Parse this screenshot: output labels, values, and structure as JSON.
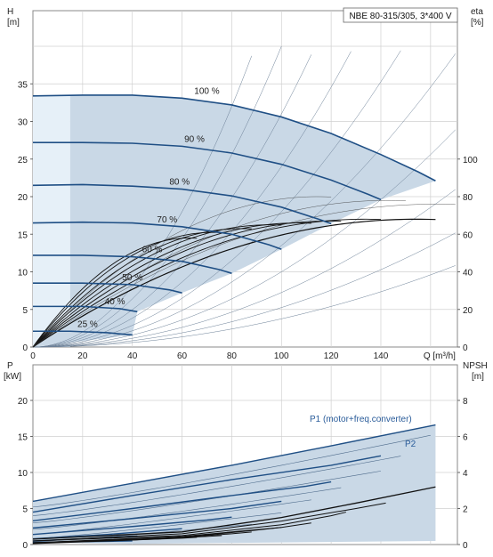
{
  "chart_data": [
    {
      "type": "line",
      "title": "NBE 80-315/305, 3*400 V",
      "xlabel": "Q [m³/h]",
      "ylabel_top": "H",
      "ylabel_unit": "[m]",
      "y2label_top": "eta",
      "y2label_unit": "[%]",
      "xlim": [
        0,
        160
      ],
      "ylim": [
        0,
        40
      ],
      "y2lim": [
        0,
        160
      ],
      "x_ticks": [
        0,
        20,
        40,
        60,
        80,
        100,
        120,
        140
      ],
      "y_ticks": [
        0,
        5,
        10,
        15,
        20,
        25,
        30,
        35
      ],
      "y2_ticks": [
        0,
        20,
        40,
        60,
        80,
        100
      ],
      "grid": true,
      "colors": {
        "area": "#c9d8e6",
        "area_light": "#e6f0f8",
        "curve": "#1f4f85",
        "eff": "#111111",
        "grid": "#d0d0d0"
      },
      "speed_curves": [
        {
          "label": "100 %",
          "label_x": 70,
          "points": [
            [
              0,
              33.4
            ],
            [
              20,
              33.5
            ],
            [
              40,
              33.5
            ],
            [
              60,
              33.1
            ],
            [
              80,
              32.2
            ],
            [
              100,
              30.6
            ],
            [
              120,
              28.4
            ],
            [
              140,
              25.6
            ],
            [
              155,
              23.3
            ],
            [
              162,
              22.1
            ]
          ]
        },
        {
          "label": "90 %",
          "label_x": 65,
          "points": [
            [
              0,
              27.2
            ],
            [
              20,
              27.2
            ],
            [
              40,
              27.1
            ],
            [
              60,
              26.7
            ],
            [
              80,
              25.8
            ],
            [
              100,
              24.3
            ],
            [
              120,
              22.2
            ],
            [
              135,
              20.3
            ],
            [
              140,
              19.6
            ]
          ]
        },
        {
          "label": "80 %",
          "label_x": 59,
          "points": [
            [
              0,
              21.5
            ],
            [
              20,
              21.6
            ],
            [
              40,
              21.4
            ],
            [
              60,
              21.0
            ],
            [
              80,
              20.1
            ],
            [
              100,
              18.6
            ],
            [
              115,
              17.0
            ],
            [
              120,
              16.4
            ]
          ]
        },
        {
          "label": "70 %",
          "label_x": 54,
          "points": [
            [
              0,
              16.5
            ],
            [
              20,
              16.6
            ],
            [
              40,
              16.5
            ],
            [
              60,
              16.0
            ],
            [
              80,
              15.0
            ],
            [
              95,
              13.6
            ],
            [
              100,
              13.0
            ]
          ]
        },
        {
          "label": "60 %",
          "label_x": 48,
          "points": [
            [
              0,
              12.2
            ],
            [
              20,
              12.2
            ],
            [
              40,
              12.0
            ],
            [
              60,
              11.4
            ],
            [
              75,
              10.3
            ],
            [
              80,
              9.8
            ]
          ]
        },
        {
          "label": "50 %",
          "label_x": 40,
          "points": [
            [
              0,
              8.5
            ],
            [
              20,
              8.5
            ],
            [
              40,
              8.3
            ],
            [
              55,
              7.6
            ],
            [
              60,
              7.2
            ]
          ]
        },
        {
          "label": "40 %",
          "label_x": 33,
          "points": [
            [
              0,
              5.4
            ],
            [
              20,
              5.4
            ],
            [
              35,
              5.1
            ],
            [
              42,
              4.7
            ]
          ]
        },
        {
          "label": "25 %",
          "label_x": 22,
          "points": [
            [
              0,
              2.1
            ],
            [
              15,
              2.1
            ],
            [
              30,
              1.9
            ],
            [
              40,
              1.6
            ]
          ]
        }
      ],
      "efficiency_curves": [
        {
          "qmax": 162,
          "etamax": 68
        },
        {
          "qmax": 140,
          "etamax": 68
        },
        {
          "qmax": 125,
          "etamax": 67
        },
        {
          "qmax": 112,
          "etamax": 66
        },
        {
          "qmax": 100,
          "etamax": 65
        },
        {
          "qmax": 88,
          "etamax": 63
        },
        {
          "qmax": 76,
          "etamax": 61
        },
        {
          "qmax": 66,
          "etamax": 58
        }
      ]
    },
    {
      "type": "line",
      "title": "",
      "xlabel": "",
      "ylabel_top": "P",
      "ylabel_unit": "[kW]",
      "y2label_top": "NPSH",
      "y2label_unit": "[m]",
      "xlim": [
        0,
        160
      ],
      "ylim": [
        0,
        20
      ],
      "y2lim": [
        0,
        8
      ],
      "y_ticks": [
        0,
        5,
        10,
        15,
        20
      ],
      "y2_ticks": [
        0,
        2,
        4,
        6,
        8
      ],
      "annotations": [
        "P1 (motor+freq.converter)",
        "P2"
      ],
      "p1_curves": [
        {
          "points": [
            [
              0,
              6.0
            ],
            [
              40,
              8.5
            ],
            [
              80,
              11.0
            ],
            [
              120,
              13.7
            ],
            [
              162,
              16.6
            ]
          ]
        },
        {
          "points": [
            [
              0,
              4.5
            ],
            [
              40,
              6.8
            ],
            [
              80,
              9.0
            ],
            [
              120,
              11.0
            ],
            [
              140,
              12.3
            ]
          ]
        },
        {
          "points": [
            [
              0,
              3.3
            ],
            [
              40,
              5.0
            ],
            [
              80,
              6.8
            ],
            [
              110,
              8.1
            ],
            [
              120,
              8.7
            ]
          ]
        },
        {
          "points": [
            [
              0,
              2.3
            ],
            [
              40,
              3.6
            ],
            [
              80,
              5.0
            ],
            [
              100,
              6.0
            ]
          ]
        },
        {
          "points": [
            [
              0,
              1.4
            ],
            [
              40,
              2.5
            ],
            [
              70,
              3.4
            ],
            [
              80,
              3.8
            ]
          ]
        },
        {
          "points": [
            [
              0,
              0.8
            ],
            [
              30,
              1.4
            ],
            [
              60,
              2.2
            ]
          ]
        },
        {
          "points": [
            [
              0,
              0.5
            ],
            [
              20,
              0.8
            ],
            [
              42,
              1.2
            ]
          ]
        },
        {
          "points": [
            [
              0,
              0.3
            ],
            [
              20,
              0.4
            ],
            [
              40,
              0.5
            ]
          ]
        }
      ],
      "npsh_curves": [
        {
          "points": [
            [
              0,
              0.3
            ],
            [
              60,
              0.7
            ],
            [
              100,
              1.5
            ],
            [
              130,
              2.3
            ],
            [
              155,
              3.0
            ],
            [
              162,
              3.2
            ]
          ]
        },
        {
          "points": [
            [
              0,
              0.2
            ],
            [
              60,
              0.6
            ],
            [
              100,
              1.3
            ],
            [
              130,
              2.0
            ],
            [
              142,
              2.3
            ]
          ]
        },
        {
          "points": [
            [
              0,
              0.2
            ],
            [
              60,
              0.5
            ],
            [
              100,
              1.1
            ],
            [
              120,
              1.6
            ],
            [
              126,
              1.8
            ]
          ]
        },
        {
          "points": [
            [
              0,
              0.1
            ],
            [
              60,
              0.45
            ],
            [
              100,
              0.95
            ],
            [
              112,
              1.2
            ]
          ]
        },
        {
          "points": [
            [
              0,
              0.1
            ],
            [
              60,
              0.4
            ],
            [
              90,
              0.8
            ],
            [
              100,
              0.95
            ]
          ]
        },
        {
          "points": [
            [
              0,
              0.1
            ],
            [
              50,
              0.3
            ],
            [
              80,
              0.6
            ],
            [
              88,
              0.7
            ]
          ]
        },
        {
          "points": [
            [
              0,
              0.1
            ],
            [
              40,
              0.25
            ],
            [
              70,
              0.45
            ],
            [
              76,
              0.5
            ]
          ]
        },
        {
          "points": [
            [
              0,
              0.05
            ],
            [
              30,
              0.2
            ],
            [
              60,
              0.35
            ],
            [
              66,
              0.4
            ]
          ]
        }
      ]
    }
  ]
}
